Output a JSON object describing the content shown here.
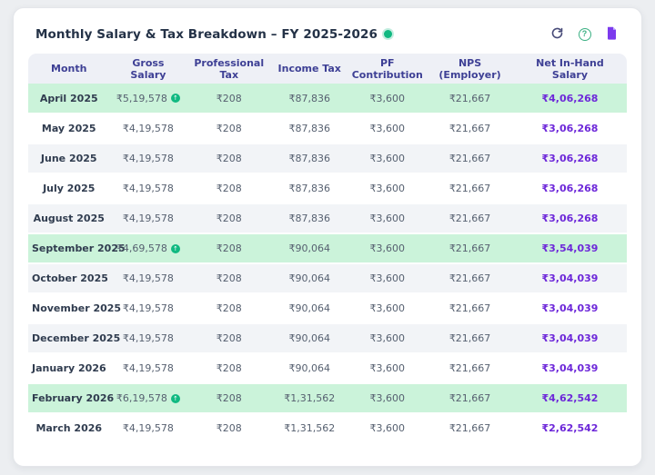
{
  "header": {
    "title": "Monthly Salary & Tax Breakdown – FY 2025-2026",
    "live_dot_color": "#10b981",
    "toolbar": {
      "refresh_icon": "refresh",
      "help_icon": "?",
      "report_icon": "document"
    }
  },
  "table": {
    "columns": [
      "Month",
      "Gross Salary",
      "Professional Tax",
      "Income Tax",
      "PF Contribution",
      "NPS (Employer)",
      "Net In-Hand Salary"
    ],
    "rows": [
      {
        "month": "April 2025",
        "gross": "₹5,19,578",
        "bonus": true,
        "professional_tax": "₹208",
        "income_tax": "₹87,836",
        "pf": "₹3,600",
        "nps": "₹21,667",
        "net": "₹4,06,268",
        "highlight": true
      },
      {
        "month": "May 2025",
        "gross": "₹4,19,578",
        "bonus": false,
        "professional_tax": "₹208",
        "income_tax": "₹87,836",
        "pf": "₹3,600",
        "nps": "₹21,667",
        "net": "₹3,06,268",
        "highlight": false
      },
      {
        "month": "June 2025",
        "gross": "₹4,19,578",
        "bonus": false,
        "professional_tax": "₹208",
        "income_tax": "₹87,836",
        "pf": "₹3,600",
        "nps": "₹21,667",
        "net": "₹3,06,268",
        "highlight": false
      },
      {
        "month": "July 2025",
        "gross": "₹4,19,578",
        "bonus": false,
        "professional_tax": "₹208",
        "income_tax": "₹87,836",
        "pf": "₹3,600",
        "nps": "₹21,667",
        "net": "₹3,06,268",
        "highlight": false
      },
      {
        "month": "August 2025",
        "gross": "₹4,19,578",
        "bonus": false,
        "professional_tax": "₹208",
        "income_tax": "₹87,836",
        "pf": "₹3,600",
        "nps": "₹21,667",
        "net": "₹3,06,268",
        "highlight": false
      },
      {
        "month": "September 2025",
        "gross": "₹4,69,578",
        "bonus": true,
        "professional_tax": "₹208",
        "income_tax": "₹90,064",
        "pf": "₹3,600",
        "nps": "₹21,667",
        "net": "₹3,54,039",
        "highlight": true
      },
      {
        "month": "October 2025",
        "gross": "₹4,19,578",
        "bonus": false,
        "professional_tax": "₹208",
        "income_tax": "₹90,064",
        "pf": "₹3,600",
        "nps": "₹21,667",
        "net": "₹3,04,039",
        "highlight": false
      },
      {
        "month": "November 2025",
        "gross": "₹4,19,578",
        "bonus": false,
        "professional_tax": "₹208",
        "income_tax": "₹90,064",
        "pf": "₹3,600",
        "nps": "₹21,667",
        "net": "₹3,04,039",
        "highlight": false
      },
      {
        "month": "December 2025",
        "gross": "₹4,19,578",
        "bonus": false,
        "professional_tax": "₹208",
        "income_tax": "₹90,064",
        "pf": "₹3,600",
        "nps": "₹21,667",
        "net": "₹3,04,039",
        "highlight": false
      },
      {
        "month": "January 2026",
        "gross": "₹4,19,578",
        "bonus": false,
        "professional_tax": "₹208",
        "income_tax": "₹90,064",
        "pf": "₹3,600",
        "nps": "₹21,667",
        "net": "₹3,04,039",
        "highlight": false
      },
      {
        "month": "February 2026",
        "gross": "₹6,19,578",
        "bonus": true,
        "professional_tax": "₹208",
        "income_tax": "₹1,31,562",
        "pf": "₹3,600",
        "nps": "₹21,667",
        "net": "₹4,62,542",
        "highlight": true
      },
      {
        "month": "March 2026",
        "gross": "₹4,19,578",
        "bonus": false,
        "professional_tax": "₹208",
        "income_tax": "₹1,31,562",
        "pf": "₹3,600",
        "nps": "₹21,667",
        "net": "₹2,62,542",
        "highlight": false
      }
    ]
  },
  "colors": {
    "accent_purple": "#6d28d9",
    "header_indigo": "#3e4095",
    "highlight_green": "#cbf3da",
    "live_green": "#10b981",
    "stripe_gray": "#f2f4f7"
  }
}
